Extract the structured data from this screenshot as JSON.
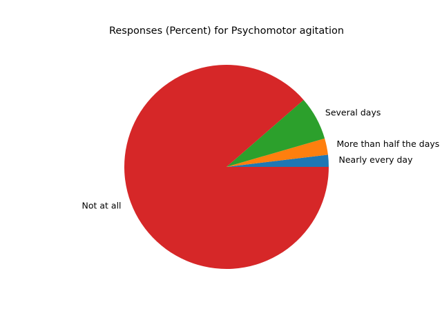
{
  "chart_data": {
    "type": "pie",
    "title": "Responses (Percent) for Psychomotor agitation",
    "categories": [
      "Nearly every day",
      "More than half the days",
      "Several days",
      "Not at all"
    ],
    "values": [
      1.9,
      2.6,
      6.9,
      88.6
    ],
    "colors": [
      "#1f77b4",
      "#ff7f0e",
      "#2ca02c",
      "#d62728"
    ],
    "start_angle_deg": 0,
    "direction": "counterclockwise",
    "legend": "none"
  }
}
